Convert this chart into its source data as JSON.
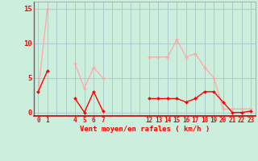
{
  "x_labels": [
    "0",
    "1",
    "",
    "",
    "4",
    "5",
    "6",
    "7",
    "",
    "",
    "",
    "",
    "12",
    "13",
    "14",
    "15",
    "16",
    "17",
    "18",
    "19",
    "20",
    "21",
    "22",
    "23"
  ],
  "x_indices": [
    0,
    1,
    2,
    3,
    4,
    5,
    6,
    7,
    8,
    9,
    10,
    11,
    12,
    13,
    14,
    15,
    16,
    17,
    18,
    19,
    20,
    21,
    22,
    23
  ],
  "wind_avg": [
    3,
    6,
    null,
    null,
    2,
    0,
    3,
    0.2,
    null,
    null,
    null,
    null,
    2,
    2,
    2,
    2,
    1.5,
    2,
    3,
    3,
    1.5,
    0,
    0,
    0.2
  ],
  "wind_gust": [
    3,
    15,
    null,
    null,
    7,
    3.5,
    6.5,
    5,
    null,
    null,
    null,
    null,
    8,
    8,
    8,
    10.5,
    8,
    8.5,
    6.5,
    5,
    0.5,
    0.5,
    0.5,
    0.5
  ],
  "avg_color": "#ff0000",
  "gust_color": "#ffaaaa",
  "bg_color": "#cceedd",
  "grid_color": "#aacccc",
  "xlabel": "Vent moyen/en rafales ( km/h )",
  "xlabel_color": "#ff0000",
  "ylim": [
    -0.5,
    16
  ],
  "yticks": [
    0,
    5,
    10,
    15
  ],
  "marker": "D",
  "markersize": 2,
  "linewidth": 1.0
}
